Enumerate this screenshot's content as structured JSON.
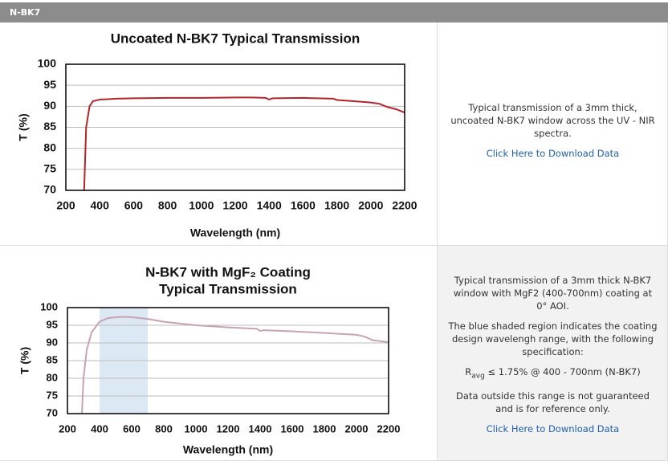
{
  "header": {
    "title": "N-BK7"
  },
  "chart_data": [
    {
      "type": "line",
      "title": [
        "Uncoated N-BK7 Typical Transmission"
      ],
      "xlabel": "Wavelength (nm)",
      "ylabel": "T (%)",
      "x": [
        308,
        320,
        340,
        360,
        400,
        500,
        600,
        800,
        1000,
        1200,
        1300,
        1380,
        1400,
        1420,
        1600,
        1780,
        1800,
        1900,
        2000,
        2050,
        2100,
        2150,
        2200
      ],
      "series": [
        {
          "color": "#b5242a",
          "values": [
            70,
            85,
            90,
            91.2,
            91.6,
            91.8,
            91.9,
            92,
            92,
            92.1,
            92.1,
            92,
            91.6,
            91.9,
            92,
            91.8,
            91.5,
            91.2,
            90.9,
            90.6,
            89.8,
            89.3,
            88.5
          ]
        }
      ],
      "xlim": [
        200,
        2200
      ],
      "ylim": [
        70,
        100
      ],
      "xticks": [
        200,
        400,
        600,
        800,
        1000,
        1200,
        1400,
        1600,
        1800,
        2000,
        2200
      ],
      "yticks": [
        70,
        75,
        80,
        85,
        90,
        95,
        100
      ],
      "grid": true
    },
    {
      "type": "line",
      "title": [
        "N-BK7 with MgF₂ Coating",
        "Typical Transmission"
      ],
      "xlabel": "Wavelength (nm)",
      "ylabel": "T (%)",
      "x": [
        290,
        300,
        320,
        350,
        400,
        450,
        500,
        550,
        600,
        700,
        800,
        1000,
        1200,
        1380,
        1400,
        1420,
        1600,
        1800,
        2000,
        2050,
        2100,
        2200
      ],
      "series": [
        {
          "color": "#c8a3b3",
          "values": [
            70,
            80,
            88,
            93,
            96,
            97,
            97.3,
            97.4,
            97.3,
            96.8,
            96,
            95,
            94.4,
            94,
            93.4,
            93.6,
            93.3,
            92.8,
            92.3,
            91.8,
            90.8,
            90.2
          ]
        }
      ],
      "shaded_region": [
        400,
        700
      ],
      "shade_color": "#dce9f5",
      "xlim": [
        200,
        2200
      ],
      "ylim": [
        70,
        100
      ],
      "xticks": [
        200,
        400,
        600,
        800,
        1000,
        1200,
        1400,
        1600,
        1800,
        2000,
        2200
      ],
      "yticks": [
        70,
        75,
        80,
        85,
        90,
        95,
        100
      ],
      "grid": true
    }
  ],
  "rows": [
    {
      "description": [
        "Typical transmission of a 3mm thick, uncoated N-BK7 window across the UV - NIR spectra."
      ],
      "link": "Click Here to Download Data"
    },
    {
      "description": [
        "Typical transmission of a 3mm thick N-BK7 window with MgF2 (400-700nm) coating at 0° AOI.",
        "The blue shaded region indicates the coating design wavelengh range, with the following specification:"
      ],
      "spec": [
        "R",
        "avg",
        " ≤ 1.75% @ 400 - 700nm (N-BK7)"
      ],
      "note": "Data outside this range is not guaranteed and is for reference only.",
      "link": "Click Here to Download Data"
    }
  ]
}
